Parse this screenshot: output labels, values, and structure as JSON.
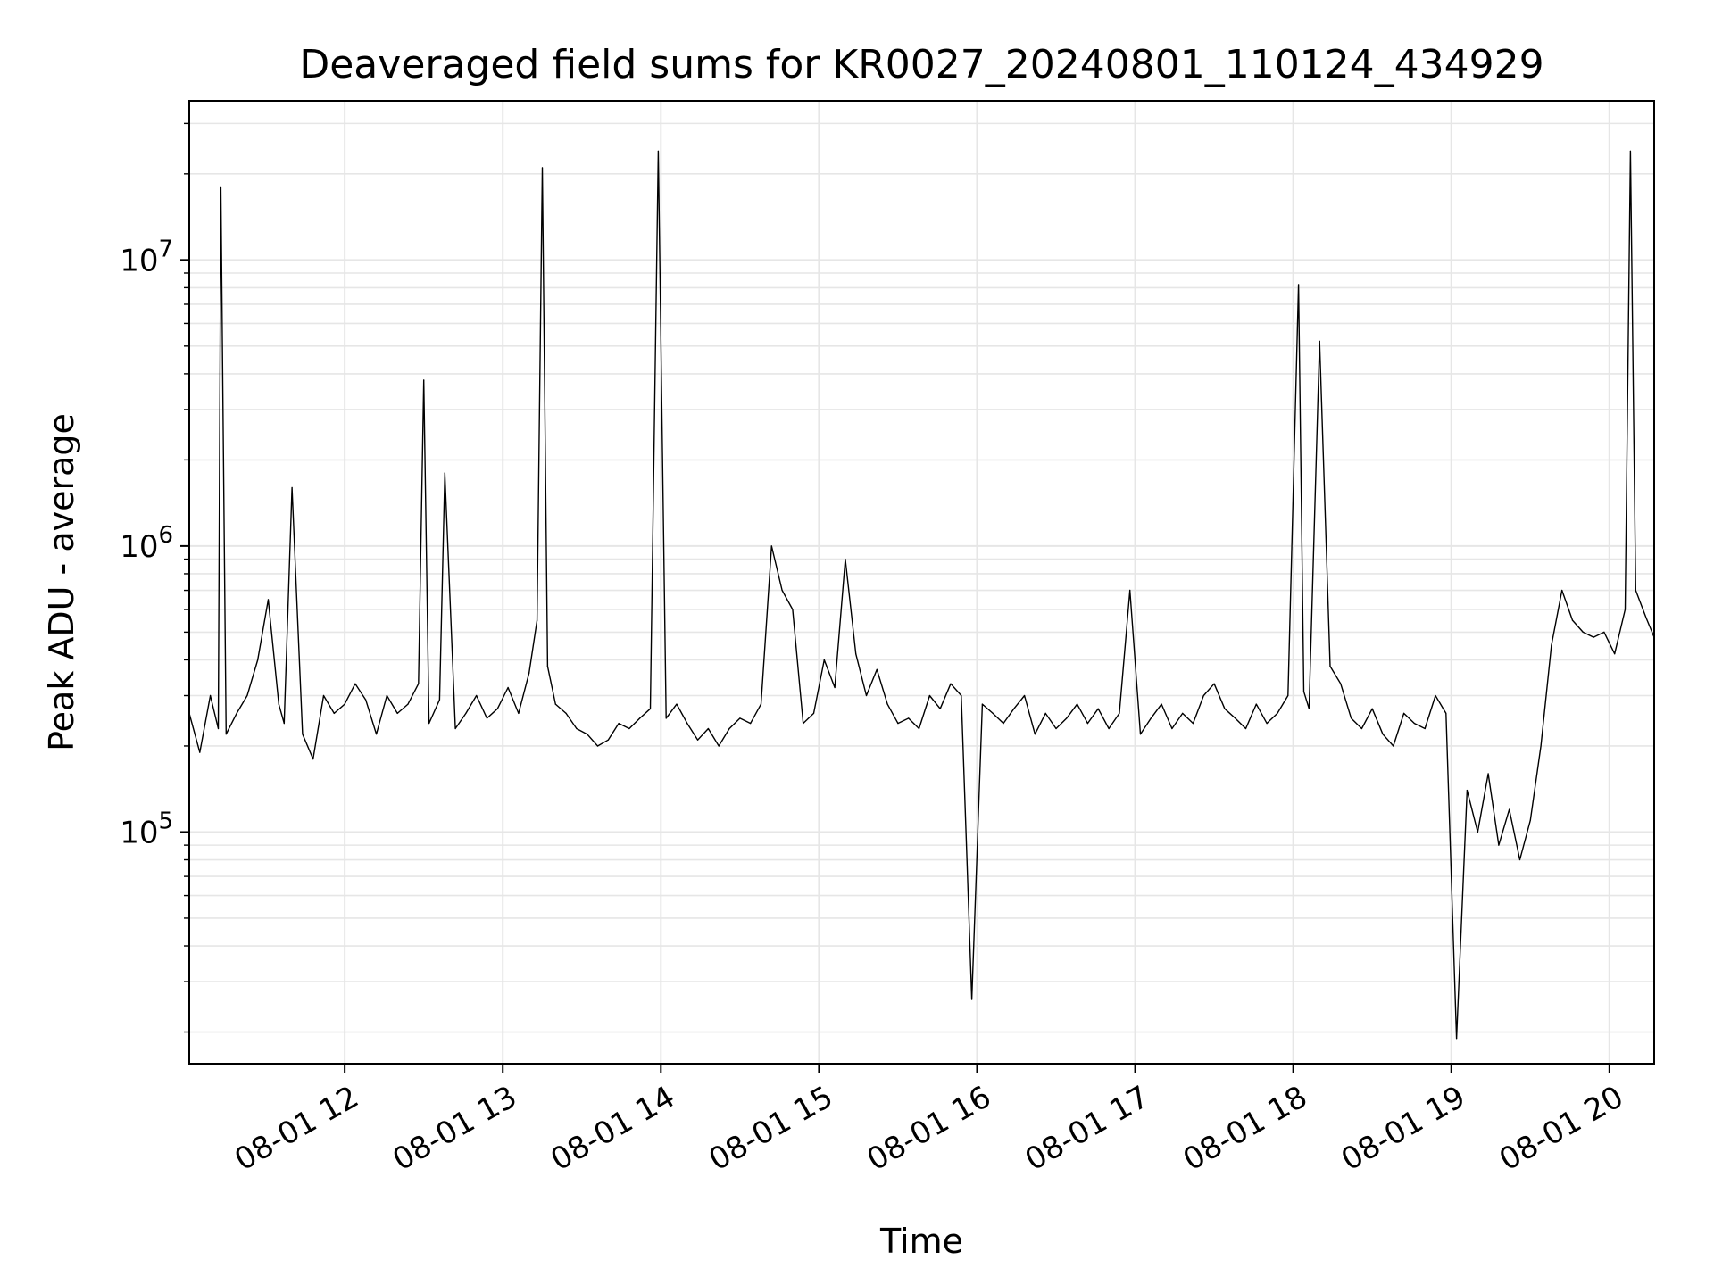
{
  "chart_data": {
    "type": "line",
    "title": "Deaveraged field sums for KR0027_20240801_110124_434929",
    "xlabel": "Time",
    "ylabel": "Peak ADU - average",
    "xscale": "time",
    "yscale": "log",
    "xlim": [
      "2024-08-01 11:01",
      "2024-08-01 20:17"
    ],
    "ylim": [
      15500,
      36000000
    ],
    "x_ticks": [
      {
        "t": "2024-08-01 12:00",
        "label": "08-01 12"
      },
      {
        "t": "2024-08-01 13:00",
        "label": "08-01 13"
      },
      {
        "t": "2024-08-01 14:00",
        "label": "08-01 14"
      },
      {
        "t": "2024-08-01 15:00",
        "label": "08-01 15"
      },
      {
        "t": "2024-08-01 16:00",
        "label": "08-01 16"
      },
      {
        "t": "2024-08-01 17:00",
        "label": "08-01 17"
      },
      {
        "t": "2024-08-01 18:00",
        "label": "08-01 18"
      },
      {
        "t": "2024-08-01 19:00",
        "label": "08-01 19"
      },
      {
        "t": "2024-08-01 20:00",
        "label": "08-01 20"
      }
    ],
    "y_ticks": [
      {
        "value": 100000,
        "base": "10",
        "exp": "5"
      },
      {
        "value": 1000000,
        "base": "10",
        "exp": "6"
      },
      {
        "value": 10000000,
        "base": "10",
        "exp": "7"
      }
    ],
    "grid": true,
    "line_color": "#000000",
    "series": [
      {
        "values_description_note_removed": null,
        "x": [
          "2024-08-01 11:01",
          "2024-08-01 11:05",
          "2024-08-01 11:09",
          "2024-08-01 11:12",
          "2024-08-01 11:13",
          "2024-08-01 11:15",
          "2024-08-01 11:19",
          "2024-08-01 11:23",
          "2024-08-01 11:27",
          "2024-08-01 11:31",
          "2024-08-01 11:35",
          "2024-08-01 11:37",
          "2024-08-01 11:40",
          "2024-08-01 11:44",
          "2024-08-01 11:48",
          "2024-08-01 11:52",
          "2024-08-01 11:56",
          "2024-08-01 12:00",
          "2024-08-01 12:04",
          "2024-08-01 12:08",
          "2024-08-01 12:12",
          "2024-08-01 12:16",
          "2024-08-01 12:20",
          "2024-08-01 12:24",
          "2024-08-01 12:28",
          "2024-08-01 12:30",
          "2024-08-01 12:32",
          "2024-08-01 12:36",
          "2024-08-01 12:38",
          "2024-08-01 12:42",
          "2024-08-01 12:46",
          "2024-08-01 12:50",
          "2024-08-01 12:54",
          "2024-08-01 12:58",
          "2024-08-01 13:02",
          "2024-08-01 13:06",
          "2024-08-01 13:10",
          "2024-08-01 13:13",
          "2024-08-01 13:15",
          "2024-08-01 13:17",
          "2024-08-01 13:20",
          "2024-08-01 13:24",
          "2024-08-01 13:28",
          "2024-08-01 13:32",
          "2024-08-01 13:36",
          "2024-08-01 13:40",
          "2024-08-01 13:44",
          "2024-08-01 13:48",
          "2024-08-01 13:52",
          "2024-08-01 13:56",
          "2024-08-01 13:59",
          "2024-08-01 14:02",
          "2024-08-01 14:06",
          "2024-08-01 14:10",
          "2024-08-01 14:14",
          "2024-08-01 14:18",
          "2024-08-01 14:22",
          "2024-08-01 14:26",
          "2024-08-01 14:30",
          "2024-08-01 14:34",
          "2024-08-01 14:38",
          "2024-08-01 14:42",
          "2024-08-01 14:46",
          "2024-08-01 14:50",
          "2024-08-01 14:54",
          "2024-08-01 14:58",
          "2024-08-01 15:02",
          "2024-08-01 15:06",
          "2024-08-01 15:10",
          "2024-08-01 15:14",
          "2024-08-01 15:18",
          "2024-08-01 15:22",
          "2024-08-01 15:26",
          "2024-08-01 15:30",
          "2024-08-01 15:34",
          "2024-08-01 15:38",
          "2024-08-01 15:42",
          "2024-08-01 15:46",
          "2024-08-01 15:50",
          "2024-08-01 15:54",
          "2024-08-01 15:58",
          "2024-08-01 16:02",
          "2024-08-01 16:06",
          "2024-08-01 16:10",
          "2024-08-01 16:14",
          "2024-08-01 16:18",
          "2024-08-01 16:22",
          "2024-08-01 16:26",
          "2024-08-01 16:30",
          "2024-08-01 16:34",
          "2024-08-01 16:38",
          "2024-08-01 16:42",
          "2024-08-01 16:46",
          "2024-08-01 16:50",
          "2024-08-01 16:54",
          "2024-08-01 16:58",
          "2024-08-01 17:02",
          "2024-08-01 17:06",
          "2024-08-01 17:10",
          "2024-08-01 17:14",
          "2024-08-01 17:18",
          "2024-08-01 17:22",
          "2024-08-01 17:26",
          "2024-08-01 17:30",
          "2024-08-01 17:34",
          "2024-08-01 17:38",
          "2024-08-01 17:42",
          "2024-08-01 17:46",
          "2024-08-01 17:50",
          "2024-08-01 17:54",
          "2024-08-01 17:58",
          "2024-08-01 18:02",
          "2024-08-01 18:04",
          "2024-08-01 18:06",
          "2024-08-01 18:10",
          "2024-08-01 18:14",
          "2024-08-01 18:18",
          "2024-08-01 18:22",
          "2024-08-01 18:26",
          "2024-08-01 18:30",
          "2024-08-01 18:34",
          "2024-08-01 18:38",
          "2024-08-01 18:42",
          "2024-08-01 18:46",
          "2024-08-01 18:50",
          "2024-08-01 18:54",
          "2024-08-01 18:58",
          "2024-08-01 19:02",
          "2024-08-01 19:06",
          "2024-08-01 19:10",
          "2024-08-01 19:14",
          "2024-08-01 19:18",
          "2024-08-01 19:22",
          "2024-08-01 19:26",
          "2024-08-01 19:30",
          "2024-08-01 19:34",
          "2024-08-01 19:38",
          "2024-08-01 19:42",
          "2024-08-01 19:46",
          "2024-08-01 19:50",
          "2024-08-01 19:54",
          "2024-08-01 19:58",
          "2024-08-01 20:02",
          "2024-08-01 20:06",
          "2024-08-01 20:08",
          "2024-08-01 20:10",
          "2024-08-01 20:14",
          "2024-08-01 20:17"
        ],
        "values": [
          260000,
          190000,
          300000,
          230000,
          18000000,
          220000,
          260000,
          300000,
          400000,
          650000,
          280000,
          240000,
          1600000,
          220000,
          180000,
          300000,
          260000,
          280000,
          330000,
          290000,
          220000,
          300000,
          260000,
          280000,
          330000,
          3800000,
          240000,
          290000,
          1800000,
          230000,
          260000,
          300000,
          250000,
          270000,
          320000,
          260000,
          360000,
          550000,
          21000000,
          380000,
          280000,
          260000,
          230000,
          220000,
          200000,
          210000,
          240000,
          230000,
          250000,
          270000,
          24000000,
          250000,
          280000,
          240000,
          210000,
          230000,
          200000,
          230000,
          250000,
          240000,
          280000,
          1000000,
          700000,
          600000,
          240000,
          260000,
          400000,
          320000,
          900000,
          420000,
          300000,
          370000,
          280000,
          240000,
          250000,
          230000,
          300000,
          270000,
          330000,
          300000,
          26000,
          280000,
          260000,
          240000,
          270000,
          300000,
          220000,
          260000,
          230000,
          250000,
          280000,
          240000,
          270000,
          230000,
          260000,
          700000,
          220000,
          250000,
          280000,
          230000,
          260000,
          240000,
          300000,
          330000,
          270000,
          250000,
          230000,
          280000,
          240000,
          260000,
          300000,
          8200000,
          310000,
          270000,
          5200000,
          380000,
          330000,
          250000,
          230000,
          270000,
          220000,
          200000,
          260000,
          240000,
          230000,
          300000,
          260000,
          19000,
          140000,
          100000,
          160000,
          90000,
          120000,
          80000,
          110000,
          200000,
          450000,
          700000,
          550000,
          500000,
          480000,
          500000,
          420000,
          600000,
          24000000,
          700000,
          560000,
          480000
        ]
      }
    ]
  }
}
